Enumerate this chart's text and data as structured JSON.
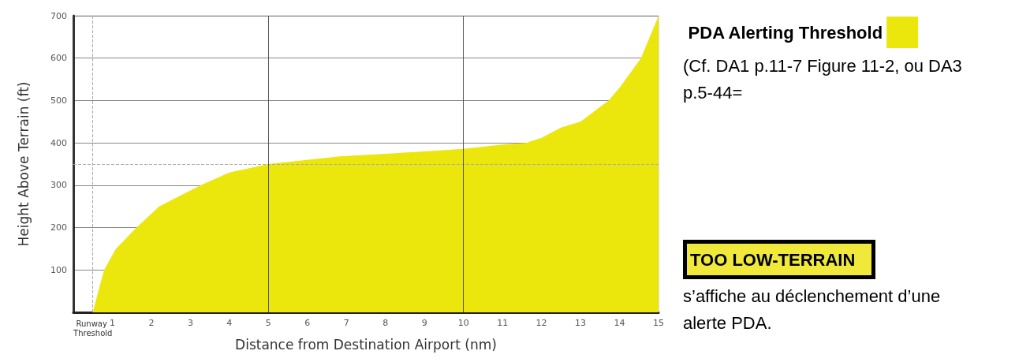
{
  "chart_data": {
    "type": "area",
    "xlabel": "Distance from Destination Airport (nm)",
    "ylabel": "Height Above Terrain (ft)",
    "series": [
      {
        "name": "PDA Alerting Threshold",
        "color": "#ebe60c",
        "x": [
          0.5,
          0.64,
          0.79,
          1.09,
          1.62,
          2.2,
          3.27,
          4,
          5,
          6.83,
          8,
          9,
          10,
          11,
          11.6,
          12,
          12.5,
          13,
          13.72,
          14,
          14.55,
          15
        ],
        "values": [
          0,
          50,
          100,
          150,
          200,
          250,
          300,
          330,
          350,
          368,
          374,
          380,
          386,
          396,
          400,
          412,
          436,
          450,
          500,
          530,
          600,
          700
        ]
      }
    ],
    "xlim": [
      0,
      15
    ],
    "xticks": [
      {
        "value": 0.5,
        "label": "Runway Threshold"
      },
      1,
      2,
      3,
      4,
      5,
      6,
      7,
      8,
      9,
      10,
      11,
      12,
      13,
      14,
      15
    ],
    "ylim": [
      0,
      700
    ],
    "yticks": [
      100,
      200,
      300,
      400,
      500,
      600,
      700
    ],
    "grid": "y",
    "legend": "right",
    "marker": "none",
    "ref_lines": [
      {
        "axis": "x",
        "value": 0.5,
        "color": "#aaaaaa",
        "line_style": "dashed"
      },
      {
        "axis": "y",
        "value": 350,
        "color": "#aaaaaa",
        "line_style": "dashed"
      },
      {
        "axis": "x",
        "value": 5,
        "color": "#555555",
        "line_style": "solid"
      },
      {
        "axis": "x",
        "value": 10,
        "color": "#555555",
        "line_style": "solid"
      }
    ],
    "annotations": [
      "(Cf. DA1 p.11-7 Figure 11-2, ou DA3 p.5-44=",
      "TOO LOW-TERRAIN",
      "s’affiche au déclenchement d’une alerte PDA."
    ]
  }
}
